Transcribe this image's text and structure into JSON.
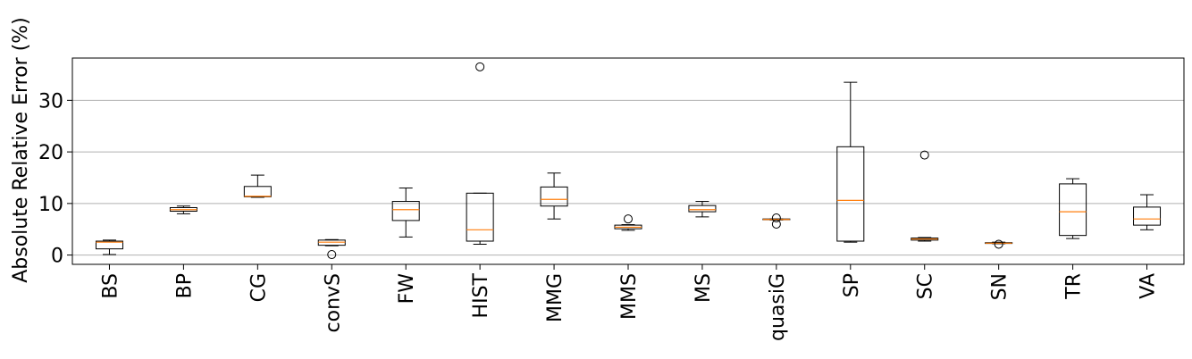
{
  "chart_data": {
    "type": "box",
    "title": "",
    "xlabel": "",
    "ylabel": "Absolute Relative Error (%)",
    "ylim": [
      -1.8,
      38.2
    ],
    "yticks": [
      0,
      10,
      20,
      30
    ],
    "grid": "y",
    "colors": {
      "box": "#000000",
      "median": "#ff7f0e",
      "grid": "#b0b0b0"
    },
    "categories": [
      "BS",
      "BP",
      "CG",
      "convS",
      "FW",
      "HIST",
      "MMG",
      "MMS",
      "MS",
      "quasiG",
      "SP",
      "SC",
      "SN",
      "TR",
      "VA"
    ],
    "boxes": [
      {
        "label": "BS",
        "whisker_low": 0.1,
        "q1": 1.2,
        "median": 2.5,
        "q3": 2.7,
        "whisker_high": 2.9,
        "outliers": []
      },
      {
        "label": "BP",
        "whisker_low": 8.0,
        "q1": 8.5,
        "median": 8.8,
        "q3": 9.2,
        "whisker_high": 9.5,
        "outliers": []
      },
      {
        "label": "CG",
        "whisker_low": 11.2,
        "q1": 11.3,
        "median": 11.4,
        "q3": 13.3,
        "whisker_high": 15.5,
        "outliers": []
      },
      {
        "label": "convS",
        "whisker_low": 1.8,
        "q1": 1.9,
        "median": 2.5,
        "q3": 2.9,
        "whisker_high": 3.0,
        "outliers": [
          0.1
        ]
      },
      {
        "label": "FW",
        "whisker_low": 3.5,
        "q1": 6.7,
        "median": 8.8,
        "q3": 10.4,
        "whisker_high": 13.0,
        "outliers": []
      },
      {
        "label": "HIST",
        "whisker_low": 2.1,
        "q1": 2.7,
        "median": 4.9,
        "q3": 12.0,
        "whisker_high": 12.0,
        "outliers": [
          36.5
        ]
      },
      {
        "label": "MMG",
        "whisker_low": 7.0,
        "q1": 9.5,
        "median": 10.8,
        "q3": 13.2,
        "whisker_high": 15.9,
        "outliers": []
      },
      {
        "label": "MMS",
        "whisker_low": 4.8,
        "q1": 5.1,
        "median": 5.4,
        "q3": 5.8,
        "whisker_high": 5.9,
        "outliers": [
          7.0
        ]
      },
      {
        "label": "MS",
        "whisker_low": 7.4,
        "q1": 8.4,
        "median": 8.8,
        "q3": 9.6,
        "whisker_high": 10.4,
        "outliers": []
      },
      {
        "label": "quasiG",
        "whisker_low": 6.8,
        "q1": 6.85,
        "median": 6.9,
        "q3": 7.0,
        "whisker_high": 7.0,
        "outliers": [
          6.0,
          7.2
        ]
      },
      {
        "label": "SP",
        "whisker_low": 2.5,
        "q1": 2.7,
        "median": 10.6,
        "q3": 21.0,
        "whisker_high": 33.5,
        "outliers": []
      },
      {
        "label": "SC",
        "whisker_low": 2.7,
        "q1": 2.9,
        "median": 3.1,
        "q3": 3.3,
        "whisker_high": 3.4,
        "outliers": [
          19.4
        ]
      },
      {
        "label": "SN",
        "whisker_low": 2.2,
        "q1": 2.25,
        "median": 2.3,
        "q3": 2.4,
        "whisker_high": 2.5,
        "outliers": [
          2.1
        ]
      },
      {
        "label": "TR",
        "whisker_low": 3.2,
        "q1": 3.8,
        "median": 8.4,
        "q3": 13.8,
        "whisker_high": 14.8,
        "outliers": []
      },
      {
        "label": "VA",
        "whisker_low": 4.9,
        "q1": 5.8,
        "median": 7.0,
        "q3": 9.3,
        "whisker_high": 11.7,
        "outliers": []
      }
    ]
  }
}
